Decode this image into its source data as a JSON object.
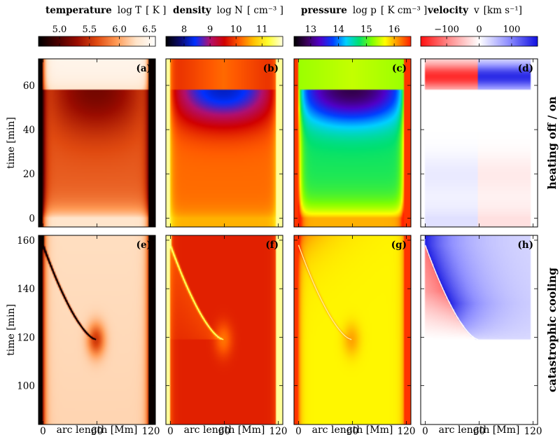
{
  "chart_data": {
    "type": "heatmap",
    "columns": [
      {
        "quantity": "temperature",
        "symbol": "log T",
        "unit": "[ K ]",
        "colorbar": {
          "range": [
            4.65,
            6.6
          ],
          "ticks": [
            5.0,
            5.5,
            6.0,
            6.5
          ],
          "tick_labels": [
            "5.0",
            "5.5",
            "6.0",
            "6.5"
          ],
          "colormap": "heat",
          "stops": [
            "#000000",
            "#4a0000",
            "#9a0c00",
            "#e04a10",
            "#ff9a55",
            "#ffe3c8",
            "#ffffff"
          ]
        }
      },
      {
        "quantity": "density",
        "symbol": "log N",
        "unit": "[ cm⁻³ ]",
        "colorbar": {
          "range": [
            7.3,
            11.8
          ],
          "ticks": [
            8,
            9,
            10,
            11
          ],
          "tick_labels": [
            "8",
            "9",
            "10",
            "11"
          ],
          "colormap": "blue-red-yellow",
          "stops": [
            "#000000",
            "#0a0a70",
            "#0030ff",
            "#b01070",
            "#d00000",
            "#ff5a00",
            "#ffc000",
            "#ffff30",
            "#ffffe0"
          ]
        }
      },
      {
        "quantity": "pressure",
        "symbol": "log p",
        "unit": "[ K cm⁻³ ]",
        "colorbar": {
          "range": [
            12.4,
            16.6
          ],
          "ticks": [
            13,
            14,
            15,
            16
          ],
          "tick_labels": [
            "13",
            "14",
            "15",
            "16"
          ],
          "colormap": "rainbow",
          "stops": [
            "#000000",
            "#3a005a",
            "#5000c8",
            "#0040ff",
            "#00d0ff",
            "#00e070",
            "#80ff00",
            "#ffff00",
            "#ff9000",
            "#ff2000"
          ]
        }
      },
      {
        "quantity": "velocity",
        "symbol": "v",
        "unit": "[km s⁻¹]",
        "colorbar": {
          "range": [
            -180,
            180
          ],
          "ticks": [
            -100,
            0,
            100
          ],
          "tick_labels": [
            "−100",
            "0",
            "100"
          ],
          "colormap": "red-white-blue",
          "stops": [
            "#ff1010",
            "#ff9090",
            "#ffffff",
            "#9090ff",
            "#1010e0"
          ]
        }
      }
    ],
    "rows": [
      {
        "row_label": "heating off / on",
        "ylabel": "time  [min]",
        "ylim": [
          -4,
          72
        ],
        "yticks": [
          0,
          20,
          40,
          60
        ],
        "ytick_labels": [
          "0",
          "20",
          "40",
          "60"
        ],
        "panel_labels": [
          "(a)",
          "(b)",
          "(c)",
          "(d)"
        ]
      },
      {
        "row_label": "catastrophic cooling",
        "ylabel": "time  [min]",
        "ylim": [
          84,
          162
        ],
        "yticks": [
          100,
          120,
          140,
          160
        ],
        "ytick_labels": [
          "100",
          "120",
          "140",
          "160"
        ],
        "panel_labels": [
          "(e)",
          "(f)",
          "(g)",
          "(h)"
        ]
      }
    ],
    "xlabel": "arc length  [Mm]",
    "xlim": [
      -5,
      125
    ],
    "xticks": [
      0,
      60,
      120
    ],
    "xtick_labels": [
      "0",
      "60",
      "120"
    ],
    "features": {
      "heating_switch_time": 58,
      "condensation_start": {
        "time": 119,
        "arc_length": 59
      },
      "condensation_end": {
        "time": 158,
        "arc_length": 0
      }
    }
  }
}
